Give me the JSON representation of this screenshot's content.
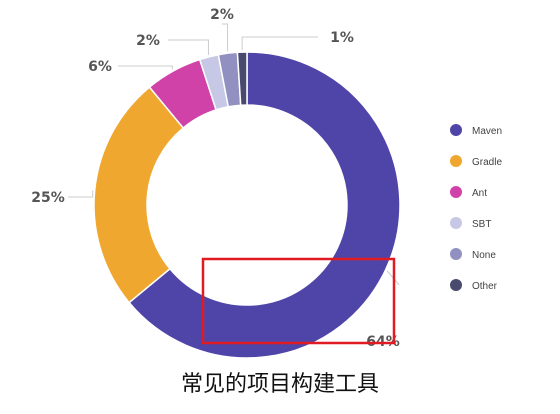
{
  "chart_data": {
    "type": "pie",
    "variant": "donut",
    "title": "常见的项目构建工具",
    "legend_position": "right",
    "categories": [
      "Maven",
      "Gradle",
      "Ant",
      "SBT",
      "None",
      "Other"
    ],
    "values": [
      64,
      25,
      6,
      2,
      2,
      1
    ],
    "value_labels": [
      "64%",
      "25%",
      "6%",
      "2%",
      "2%",
      "1%"
    ],
    "colors": [
      "#4f45a8",
      "#f0a72f",
      "#d042a8",
      "#c7c7e6",
      "#9190c0",
      "#4a4a6e"
    ],
    "highlight_box_color": "#e01b22"
  }
}
